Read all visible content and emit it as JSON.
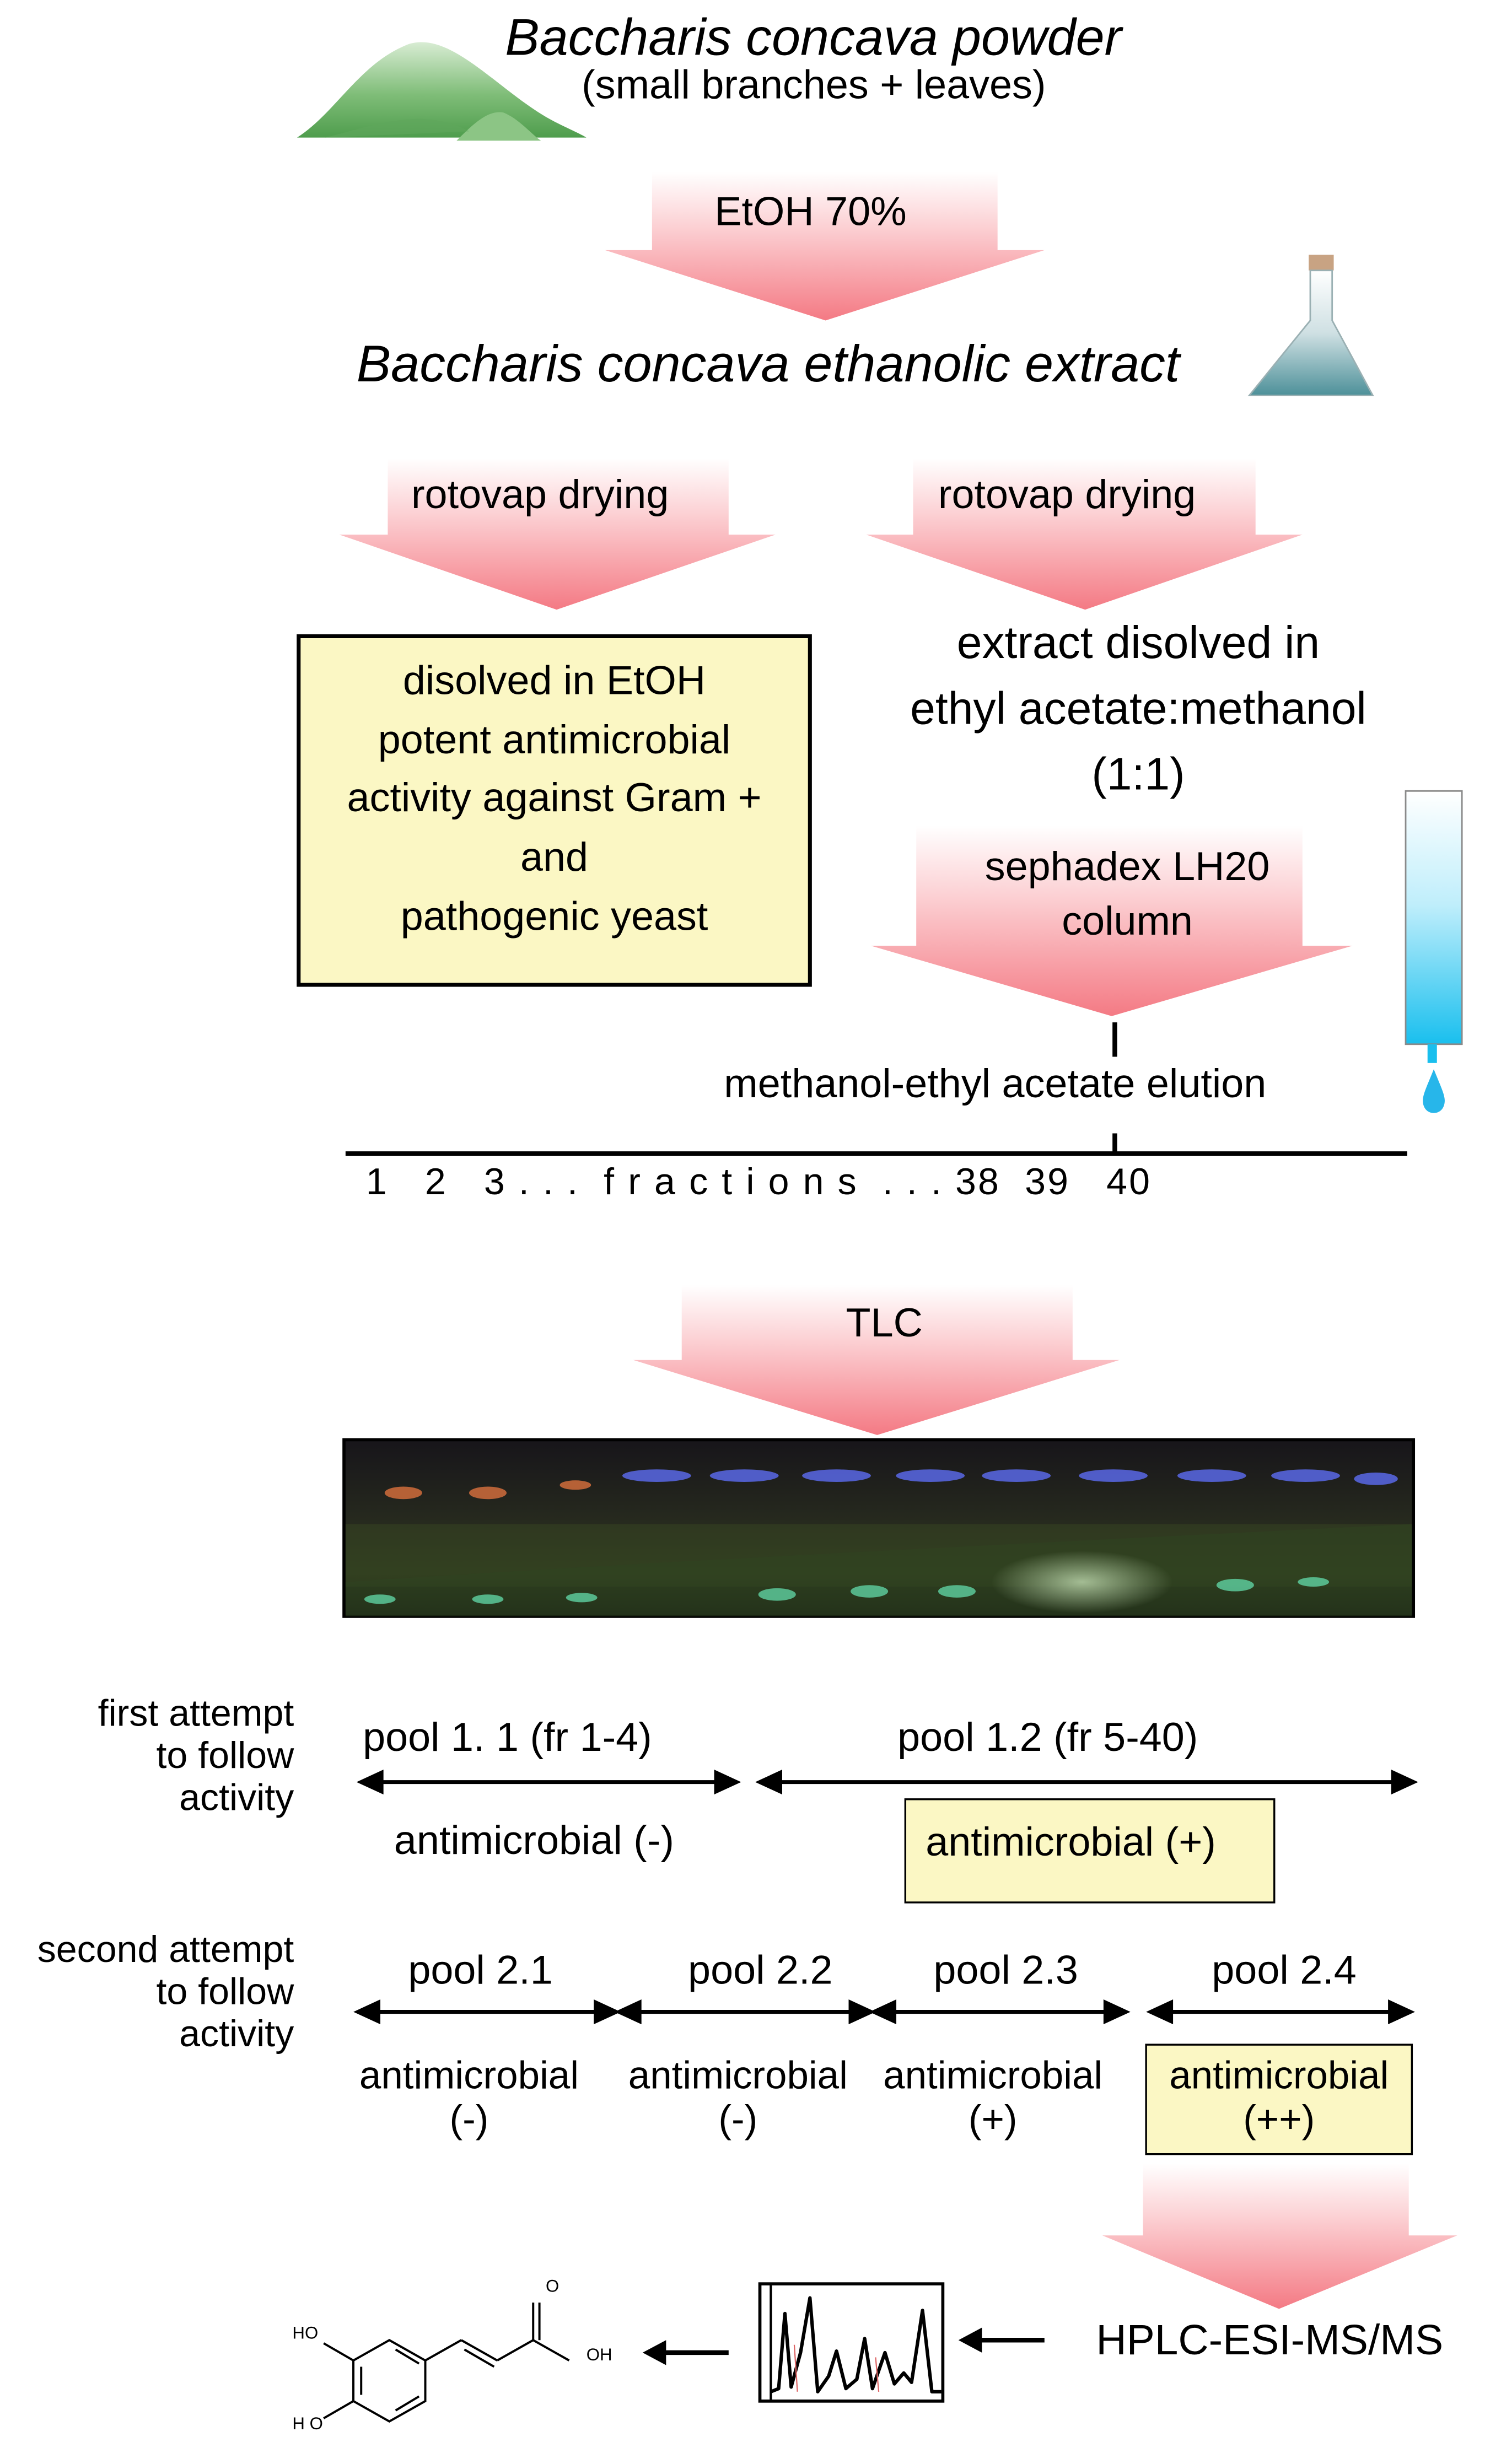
{
  "title": "Baccharis concava powder",
  "subtitle": "(small branches + leaves)",
  "step_etoh": "EtOH 70%",
  "extract_label": "Baccharis concava ethanolic extract",
  "left_branch": {
    "arrow_label": "rotovap drying",
    "box_lines": [
      "disolved in EtOH",
      "potent antimicrobial",
      "activity against Gram +",
      "and",
      "pathogenic yeast"
    ]
  },
  "right_branch": {
    "arrow_label": "rotovap drying",
    "dissolved_lines": [
      "extract disolved in",
      "ethyl acetate:methanol",
      "(1:1)"
    ],
    "column_lines": [
      "sephadex LH20",
      "column"
    ],
    "elution": "methanol-ethyl acetate elution"
  },
  "fractions_axis": "1   2   3 . . .  f r a c t i o n s  . . . 38  39   40",
  "tlc_label": "TLC",
  "first_attempt": {
    "label_lines": [
      "first attempt",
      "to follow",
      "activity"
    ],
    "pools": [
      {
        "name": "pool 1. 1 (fr 1-4)",
        "result": "antimicrobial (-)",
        "highlight": false
      },
      {
        "name": "pool 1.2 (fr 5-40)",
        "result": "antimicrobial (+)",
        "highlight": true
      }
    ]
  },
  "second_attempt": {
    "label_lines": [
      "second attempt",
      "to follow",
      "activity"
    ],
    "pools": [
      {
        "name": "pool 2.1",
        "result_line1": "antimicrobial",
        "result_line2": "(-)",
        "highlight": false
      },
      {
        "name": "pool 2.2",
        "result_line1": "antimicrobial",
        "result_line2": "(-)",
        "highlight": false
      },
      {
        "name": "pool 2.3",
        "result_line1": "antimicrobial",
        "result_line2": "(+)",
        "highlight": false
      },
      {
        "name": "pool 2.4",
        "result_line1": "antimicrobial",
        "result_line2": "(++)",
        "highlight": true
      }
    ]
  },
  "hplc_label": "HPLC-ESI-MS/MS",
  "molecule_labels": {
    "ho_top": "HO",
    "ho_bottom": "H O",
    "oh": "OH",
    "o": "O"
  },
  "colors": {
    "arrow_top": "#ffffff",
    "arrow_bottom": "#f47a84",
    "highlight_fill": "#fbf7c4",
    "mound": "#6fb36c",
    "column_liquid": "#22c6f0",
    "flask_liquid": "#5b9ea6"
  }
}
